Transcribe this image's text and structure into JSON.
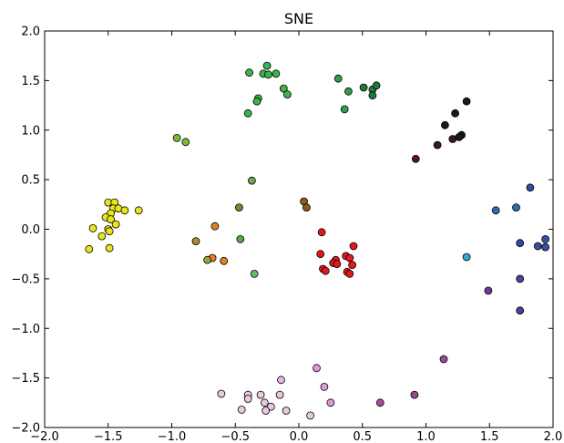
{
  "chart_data": {
    "type": "scatter",
    "title": "SNE",
    "xlabel": "",
    "ylabel": "",
    "xlim": [
      -2.0,
      2.0
    ],
    "ylim": [
      -2.0,
      2.0
    ],
    "x_ticks": [
      -2.0,
      -1.5,
      -1.0,
      -0.5,
      0.0,
      0.5,
      1.0,
      1.5,
      2.0
    ],
    "y_ticks": [
      -2.0,
      -1.5,
      -1.0,
      -0.5,
      0.0,
      0.5,
      1.0,
      1.5,
      2.0
    ],
    "x_tick_labels": [
      "−2.0",
      "−1.5",
      "−1.0",
      "−0.5",
      "0.0",
      "0.5",
      "1.0",
      "1.5",
      "2.0"
    ],
    "y_tick_labels": [
      "−2.0",
      "−1.5",
      "−1.0",
      "−0.5",
      "0.0",
      "0.5",
      "1.0",
      "1.5",
      "2.0"
    ],
    "grid": false,
    "legend": false,
    "marker": "circle",
    "marker_edge_color": "#000000",
    "points": [
      {
        "x": -1.5,
        "y": 0.27,
        "color": "#e6e619"
      },
      {
        "x": -1.45,
        "y": 0.27,
        "color": "#e6e619"
      },
      {
        "x": -1.46,
        "y": 0.21,
        "color": "#e6e619"
      },
      {
        "x": -1.42,
        "y": 0.21,
        "color": "#e6e619"
      },
      {
        "x": -1.37,
        "y": 0.19,
        "color": "#e6e619"
      },
      {
        "x": -1.26,
        "y": 0.19,
        "color": "#e6e619"
      },
      {
        "x": -1.48,
        "y": 0.16,
        "color": "#e6e619"
      },
      {
        "x": -1.52,
        "y": 0.12,
        "color": "#e6e619"
      },
      {
        "x": -1.48,
        "y": 0.1,
        "color": "#e6e619"
      },
      {
        "x": -1.44,
        "y": 0.05,
        "color": "#e6e619"
      },
      {
        "x": -1.62,
        "y": 0.01,
        "color": "#e6e619"
      },
      {
        "x": -1.5,
        "y": 0.0,
        "color": "#e6e619"
      },
      {
        "x": -1.49,
        "y": -0.02,
        "color": "#e6e619"
      },
      {
        "x": -1.55,
        "y": -0.07,
        "color": "#e6e619"
      },
      {
        "x": -1.49,
        "y": -0.19,
        "color": "#e6e619"
      },
      {
        "x": -1.65,
        "y": -0.2,
        "color": "#e6e619"
      },
      {
        "x": -0.39,
        "y": 1.58,
        "color": "#3cb44b"
      },
      {
        "x": -0.25,
        "y": 1.65,
        "color": "#3cb44b"
      },
      {
        "x": -0.28,
        "y": 1.57,
        "color": "#3cb44b"
      },
      {
        "x": -0.24,
        "y": 1.56,
        "color": "#3cb44b"
      },
      {
        "x": -0.18,
        "y": 1.57,
        "color": "#3cb44b"
      },
      {
        "x": -0.12,
        "y": 1.42,
        "color": "#3cb44b"
      },
      {
        "x": -0.09,
        "y": 1.36,
        "color": "#3cb44b"
      },
      {
        "x": -0.32,
        "y": 1.32,
        "color": "#3cb44b"
      },
      {
        "x": -0.33,
        "y": 1.29,
        "color": "#3cb44b"
      },
      {
        "x": -0.4,
        "y": 1.17,
        "color": "#3cb44b"
      },
      {
        "x": 0.31,
        "y": 1.52,
        "color": "#2e9e4a"
      },
      {
        "x": 0.39,
        "y": 1.39,
        "color": "#2e9e4a"
      },
      {
        "x": 0.36,
        "y": 1.21,
        "color": "#2e9e4a"
      },
      {
        "x": 0.51,
        "y": 1.43,
        "color": "#1f7a3a"
      },
      {
        "x": 0.58,
        "y": 1.41,
        "color": "#1f7a3a"
      },
      {
        "x": 0.61,
        "y": 1.45,
        "color": "#1f7a3a"
      },
      {
        "x": 0.58,
        "y": 1.35,
        "color": "#1f7a3a"
      },
      {
        "x": 1.32,
        "y": 1.29,
        "color": "#1a1a1a"
      },
      {
        "x": 1.23,
        "y": 1.17,
        "color": "#1a1a1a"
      },
      {
        "x": 1.15,
        "y": 1.05,
        "color": "#1a1a1a"
      },
      {
        "x": 1.28,
        "y": 0.95,
        "color": "#1a1a1a"
      },
      {
        "x": 1.26,
        "y": 0.93,
        "color": "#1a1a1a"
      },
      {
        "x": 1.21,
        "y": 0.91,
        "color": "#3a1a20"
      },
      {
        "x": 1.09,
        "y": 0.85,
        "color": "#3a1a20"
      },
      {
        "x": 0.92,
        "y": 0.71,
        "color": "#5a1520"
      },
      {
        "x": -0.96,
        "y": 0.92,
        "color": "#7dba3c"
      },
      {
        "x": -0.89,
        "y": 0.88,
        "color": "#7dba3c"
      },
      {
        "x": -0.37,
        "y": 0.49,
        "color": "#6aa84f"
      },
      {
        "x": -0.47,
        "y": 0.22,
        "color": "#7a8a30"
      },
      {
        "x": -0.46,
        "y": -0.1,
        "color": "#5aa84a"
      },
      {
        "x": -0.35,
        "y": -0.45,
        "color": "#66bb66"
      },
      {
        "x": -0.66,
        "y": 0.03,
        "color": "#e67e22"
      },
      {
        "x": -0.81,
        "y": -0.12,
        "color": "#b08a30"
      },
      {
        "x": -0.68,
        "y": -0.29,
        "color": "#e67e22"
      },
      {
        "x": -0.72,
        "y": -0.31,
        "color": "#a0a040"
      },
      {
        "x": -0.59,
        "y": -0.32,
        "color": "#e67e22"
      },
      {
        "x": 0.04,
        "y": 0.28,
        "color": "#8b5a1a"
      },
      {
        "x": 0.06,
        "y": 0.22,
        "color": "#8b5a1a"
      },
      {
        "x": 0.18,
        "y": -0.03,
        "color": "#e31a1c"
      },
      {
        "x": 0.43,
        "y": -0.17,
        "color": "#e31a1c"
      },
      {
        "x": 0.17,
        "y": -0.25,
        "color": "#e31a1c"
      },
      {
        "x": 0.37,
        "y": -0.27,
        "color": "#e31a1c"
      },
      {
        "x": 0.4,
        "y": -0.29,
        "color": "#e31a1c"
      },
      {
        "x": 0.29,
        "y": -0.31,
        "color": "#e31a1c"
      },
      {
        "x": 0.27,
        "y": -0.34,
        "color": "#e31a1c"
      },
      {
        "x": 0.3,
        "y": -0.35,
        "color": "#e31a1c"
      },
      {
        "x": 0.42,
        "y": -0.36,
        "color": "#e31a1c"
      },
      {
        "x": 0.19,
        "y": -0.4,
        "color": "#e31a1c"
      },
      {
        "x": 0.21,
        "y": -0.42,
        "color": "#e31a1c"
      },
      {
        "x": 0.38,
        "y": -0.43,
        "color": "#e31a1c"
      },
      {
        "x": 0.4,
        "y": -0.45,
        "color": "#e31a1c"
      },
      {
        "x": 1.82,
        "y": 0.42,
        "color": "#2c4fa0"
      },
      {
        "x": 1.55,
        "y": 0.19,
        "color": "#2c6fb0"
      },
      {
        "x": 1.71,
        "y": 0.22,
        "color": "#2c6fb0"
      },
      {
        "x": 1.94,
        "y": -0.1,
        "color": "#3a4fa0"
      },
      {
        "x": 1.74,
        "y": -0.14,
        "color": "#2c4fa0"
      },
      {
        "x": 1.88,
        "y": -0.17,
        "color": "#3a4fa0"
      },
      {
        "x": 1.94,
        "y": -0.18,
        "color": "#3a4fa0"
      },
      {
        "x": 1.32,
        "y": -0.28,
        "color": "#33aacc"
      },
      {
        "x": 1.74,
        "y": -0.5,
        "color": "#5a3a9a"
      },
      {
        "x": 1.49,
        "y": -0.62,
        "color": "#6a3a9a"
      },
      {
        "x": 1.74,
        "y": -0.82,
        "color": "#5a3a9a"
      },
      {
        "x": 1.14,
        "y": -1.31,
        "color": "#9b4a9b"
      },
      {
        "x": 0.91,
        "y": -1.67,
        "color": "#9b4a9b"
      },
      {
        "x": 0.64,
        "y": -1.75,
        "color": "#b04aa0"
      },
      {
        "x": 0.14,
        "y": -1.4,
        "color": "#d99ad9"
      },
      {
        "x": -0.14,
        "y": -1.52,
        "color": "#e8b8e0"
      },
      {
        "x": 0.2,
        "y": -1.59,
        "color": "#d99ad9"
      },
      {
        "x": -0.61,
        "y": -1.66,
        "color": "#e8c8e0"
      },
      {
        "x": -0.4,
        "y": -1.67,
        "color": "#e8c8e0"
      },
      {
        "x": -0.3,
        "y": -1.67,
        "color": "#e8c8e0"
      },
      {
        "x": -0.15,
        "y": -1.67,
        "color": "#e8c8e0"
      },
      {
        "x": -0.4,
        "y": -1.71,
        "color": "#e8c8e0"
      },
      {
        "x": -0.27,
        "y": -1.75,
        "color": "#e8c8e0"
      },
      {
        "x": 0.25,
        "y": -1.75,
        "color": "#d99ad9"
      },
      {
        "x": -0.22,
        "y": -1.79,
        "color": "#e8c8e0"
      },
      {
        "x": -0.45,
        "y": -1.82,
        "color": "#e8c8e0"
      },
      {
        "x": -0.26,
        "y": -1.83,
        "color": "#e8c8e0"
      },
      {
        "x": -0.1,
        "y": -1.83,
        "color": "#e8c8e0"
      },
      {
        "x": 0.09,
        "y": -1.88,
        "color": "#e8c8e0"
      }
    ]
  }
}
